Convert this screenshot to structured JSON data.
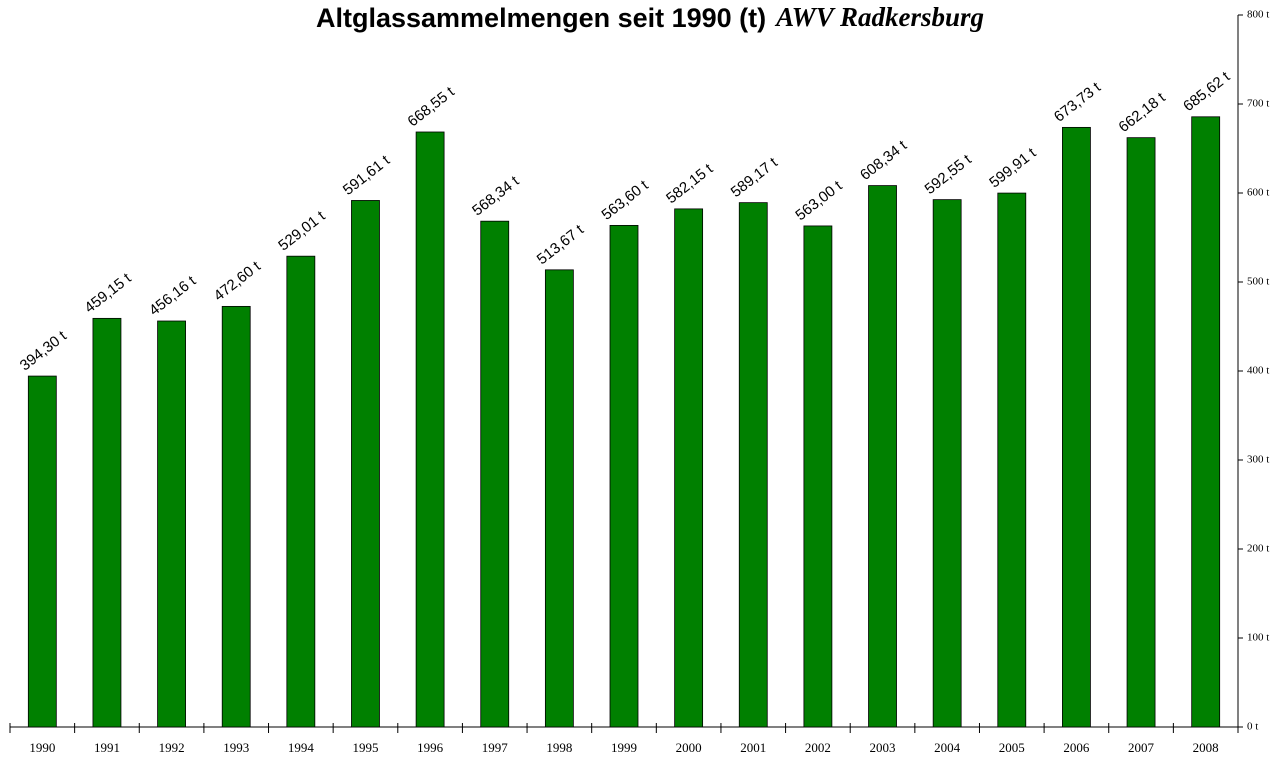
{
  "chart_data": {
    "type": "bar",
    "title": "Altglassammelmengen seit 1990 (t)",
    "title_emphasis": "AWV Radkersburg",
    "categories": [
      "1990",
      "1991",
      "1992",
      "1993",
      "1994",
      "1995",
      "1996",
      "1997",
      "1998",
      "1999",
      "2000",
      "2001",
      "2002",
      "2003",
      "2004",
      "2005",
      "2006",
      "2007",
      "2008"
    ],
    "values": [
      394.3,
      459.15,
      456.16,
      472.6,
      529.01,
      591.61,
      668.55,
      568.34,
      513.67,
      563.6,
      582.15,
      589.17,
      563.0,
      608.34,
      592.55,
      599.91,
      673.73,
      662.18,
      685.62
    ],
    "value_labels": [
      "394,30 t",
      "459,15 t",
      "456,16 t",
      "472,60 t",
      "529,01 t",
      "591,61 t",
      "668,55 t",
      "568,34 t",
      "513,67 t",
      "563,60 t",
      "582,15 t",
      "589,17 t",
      "563,00 t",
      "608,34 t",
      "592,55 t",
      "599,91 t",
      "673,73 t",
      "662,18 t",
      "685,62 t"
    ],
    "color": "#008000",
    "ylim": [
      0,
      800
    ],
    "yticks": [
      {
        "value": 0,
        "label": "0 t"
      },
      {
        "value": 100,
        "label": "100 t"
      },
      {
        "value": 200,
        "label": "200 t"
      },
      {
        "value": 300,
        "label": "300 t"
      },
      {
        "value": 400,
        "label": "400 t"
      },
      {
        "value": 500,
        "label": "500 t"
      },
      {
        "value": 600,
        "label": "600 t"
      },
      {
        "value": 700,
        "label": "700 t"
      },
      {
        "value": 800,
        "label": "800 t"
      }
    ],
    "y_axis_side": "right",
    "grid": false
  }
}
